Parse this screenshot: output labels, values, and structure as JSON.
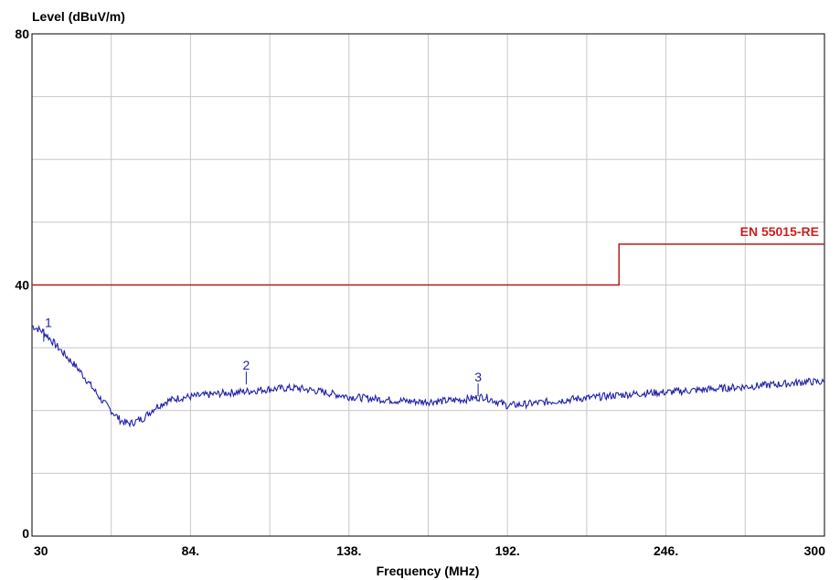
{
  "chart_data": {
    "type": "line",
    "title": "",
    "ylabel": "Level (dBuV/m)",
    "xlabel": "Frequency (MHz)",
    "xlim": [
      30,
      300
    ],
    "ylim": [
      0,
      80
    ],
    "x_ticks": [
      30,
      84,
      138,
      192,
      246,
      300
    ],
    "x_tick_labels": [
      "30",
      "84.",
      "138.",
      "192.",
      "246.",
      "300"
    ],
    "y_ticks": [
      0,
      40,
      80
    ],
    "y_tick_labels": [
      "0",
      "40",
      "80"
    ],
    "grid": true,
    "x_grid_step": 27,
    "y_grid_step": 10,
    "series": [
      {
        "name": "",
        "color": "#1f1fa8",
        "x": [
          30,
          34,
          38,
          42,
          46,
          50,
          54,
          58,
          60,
          62,
          64,
          68,
          72,
          76,
          80,
          84,
          90,
          96,
          102,
          108,
          114,
          120,
          126,
          132,
          138,
          146,
          154,
          162,
          170,
          178,
          184,
          188,
          192,
          198,
          204,
          210,
          216,
          222,
          228,
          234,
          240,
          246,
          252,
          258,
          264,
          270,
          276,
          282,
          288,
          294,
          300
        ],
        "y": [
          33.5,
          32.5,
          30.5,
          28.5,
          26.5,
          24.0,
          21.5,
          19.5,
          18.5,
          18.0,
          18.0,
          18.8,
          20.5,
          21.5,
          22.0,
          22.2,
          22.5,
          22.8,
          23.0,
          23.3,
          23.5,
          23.6,
          23.2,
          22.7,
          22.2,
          21.9,
          21.6,
          21.4,
          21.5,
          21.8,
          22.2,
          21.5,
          20.8,
          21.0,
          21.3,
          21.6,
          21.9,
          22.1,
          22.4,
          22.6,
          22.8,
          22.9,
          23.1,
          23.3,
          23.5,
          23.7,
          23.9,
          24.1,
          24.3,
          24.6,
          24.5
        ]
      },
      {
        "name": "EN 55015-RE",
        "color": "#b01c1c",
        "step": true,
        "x": [
          30,
          230,
          230,
          300
        ],
        "y": [
          40,
          40,
          46.5,
          46.5
        ]
      }
    ],
    "markers": [
      {
        "label": "1",
        "x": 34,
        "y": 33.0
      },
      {
        "label": "2",
        "x": 103,
        "y": 26.2
      },
      {
        "label": "3",
        "x": 182,
        "y": 24.3
      }
    ]
  }
}
